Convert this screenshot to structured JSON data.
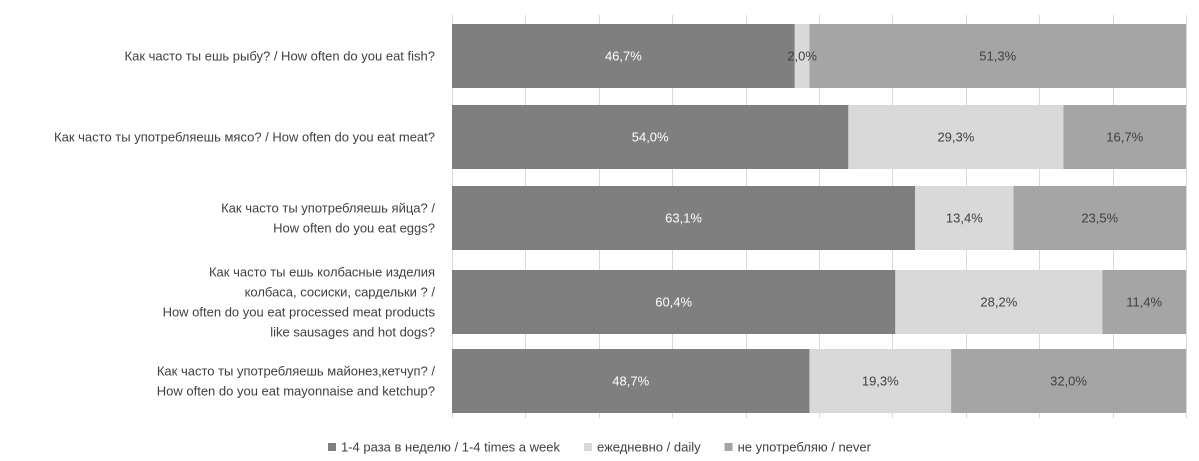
{
  "chart_data": {
    "type": "bar",
    "orientation": "horizontal",
    "stacked": true,
    "percent": true,
    "title": "",
    "xlabel": "",
    "ylabel": "",
    "xlim": [
      0,
      100
    ],
    "grid": true,
    "legend_position": "bottom",
    "categories": [
      [
        "Как часто ты ешь рыбу? / How often do you eat fish?"
      ],
      [
        "Как часто ты употребляешь мясо? / How often do you eat meat?"
      ],
      [
        "Как часто ты употребляешь яйца? /",
        "How often do you eat eggs?"
      ],
      [
        "Как часто ты ешь колбасные изделия",
        "колбаса, сосиски, сардельки ? /",
        "How often do you eat processed meat products",
        "like sausages and hot dogs?"
      ],
      [
        "Как часто ты употребляешь майонез,кетчуп? /",
        "How often do you eat mayonnaise and ketchup?"
      ]
    ],
    "series": [
      {
        "name": "1-4 раза в неделю / 1-4 times a week",
        "color": "#7f7f7f",
        "label_color": "#ffffff",
        "values": [
          46.7,
          54.0,
          63.1,
          60.4,
          48.7
        ],
        "labels": [
          "46,7%",
          "54,0%",
          "63,1%",
          "60,4%",
          "48,7%"
        ]
      },
      {
        "name": "ежедневно / daily",
        "color": "#d9d9d9",
        "label_color": "#404040",
        "values": [
          2.0,
          29.3,
          13.4,
          28.2,
          19.3
        ],
        "labels": [
          "2,0%",
          "29,3%",
          "13,4%",
          "28,2%",
          "19,3%"
        ]
      },
      {
        "name": "не употребляю / never",
        "color": "#a5a5a5",
        "label_color": "#404040",
        "values": [
          51.3,
          16.7,
          23.5,
          11.4,
          32.0
        ],
        "labels": [
          "51,3%",
          "16,7%",
          "23,5%",
          "11,4%",
          "32,0%"
        ]
      }
    ]
  }
}
